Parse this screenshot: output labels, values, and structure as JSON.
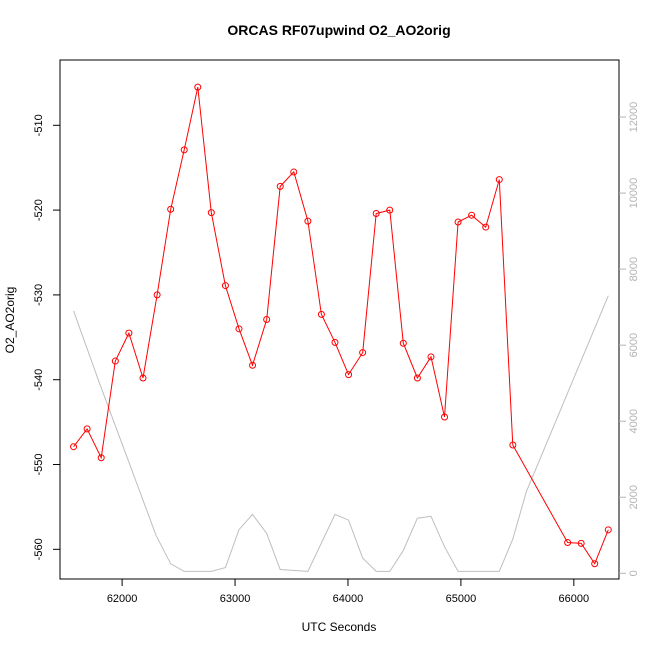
{
  "chart_data": {
    "type": "line",
    "title": "ORCAS RF07upwind O2_AO2orig",
    "xlabel": "UTC Seconds",
    "ylabel": "O2_AO2orig",
    "xlim": [
      61450,
      66400
    ],
    "ylim": [
      -563.5,
      -502.3
    ],
    "y2lim": [
      -150,
      13500
    ],
    "x_ticks": [
      62000,
      63000,
      64000,
      65000,
      66000
    ],
    "y_ticks": [
      -510,
      -520,
      -530,
      -540,
      -550,
      -560
    ],
    "y2_ticks": [
      0,
      2000,
      4000,
      6000,
      8000,
      10000,
      12000
    ],
    "series": [
      {
        "color": "#ff0000",
        "axis": "left",
        "markers": "open-circle",
        "x": [
          61570,
          61690,
          61815,
          61940,
          62060,
          62185,
          62310,
          62430,
          62550,
          62670,
          62790,
          62915,
          63035,
          63155,
          63280,
          63400,
          63520,
          63645,
          63765,
          63885,
          64005,
          64130,
          64250,
          64370,
          64490,
          64615,
          64735,
          64855,
          64975,
          65095,
          65220,
          65340,
          65460,
          65945,
          66065,
          66185,
          66305
        ],
        "values": [
          -547.9,
          -545.8,
          -549.2,
          -537.8,
          -534.5,
          -539.8,
          -530.0,
          -519.9,
          -512.9,
          -505.5,
          -520.3,
          -528.9,
          -534.0,
          -538.3,
          -532.9,
          -517.2,
          -515.5,
          -521.3,
          -532.3,
          -535.6,
          -539.4,
          -536.8,
          -520.4,
          -520.0,
          -535.7,
          -539.8,
          -537.3,
          -544.4,
          -521.4,
          -520.6,
          -522.0,
          -516.4,
          -547.7,
          -559.2,
          -559.3,
          -561.7,
          -557.7
        ]
      },
      {
        "color": "#bebebe",
        "axis": "right",
        "markers": "none",
        "x": [
          61570,
          61800,
          62050,
          62300,
          62430,
          62550,
          62670,
          62790,
          62915,
          63035,
          63155,
          63280,
          63400,
          63645,
          63885,
          64005,
          64130,
          64250,
          64370,
          64490,
          64615,
          64735,
          64855,
          64975,
          65340,
          65460,
          65580,
          66305
        ],
        "values": [
          6900,
          5000,
          3000,
          1000,
          250,
          50,
          50,
          50,
          150,
          1150,
          1550,
          1050,
          100,
          50,
          1550,
          1400,
          400,
          50,
          50,
          600,
          1450,
          1500,
          700,
          50,
          50,
          900,
          2150,
          7300
        ]
      }
    ]
  }
}
